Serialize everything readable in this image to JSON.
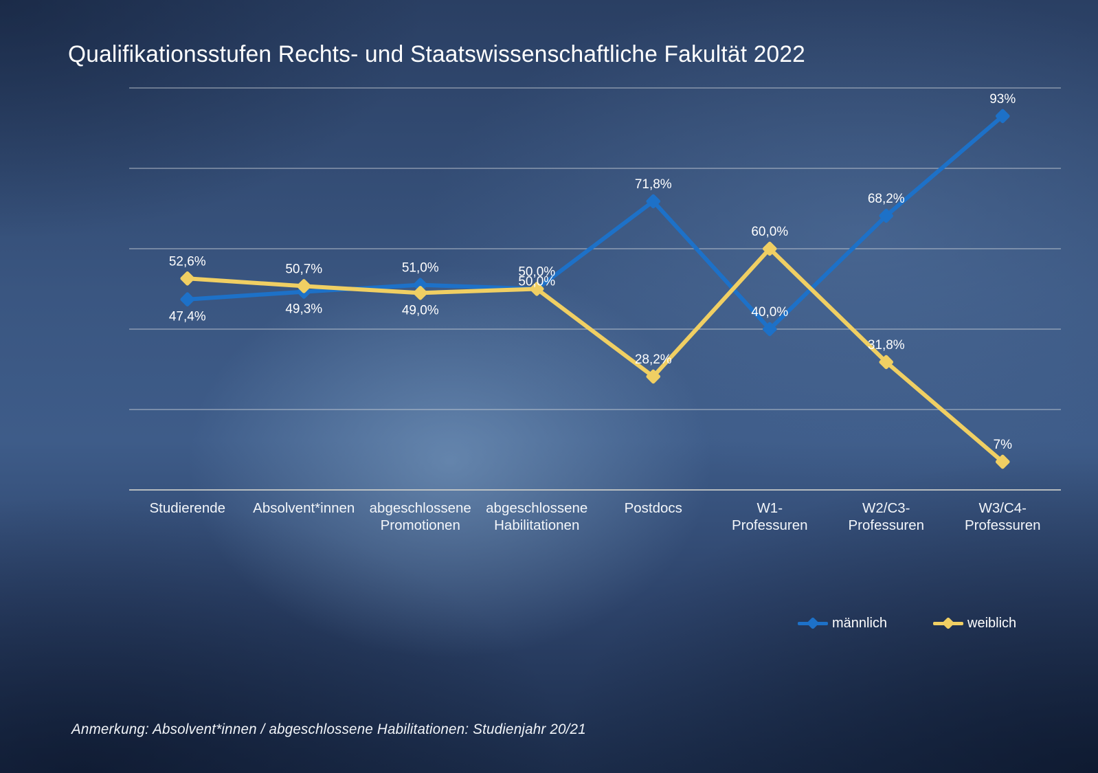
{
  "page": {
    "title": "Qualifikationsstufen Rechts- und Staatswissenschaftliche Fakultät 2022",
    "note": "Anmerkung: Absolvent*innen / abgeschlossene Habilitationen: Studienjahr 20/21"
  },
  "legend": {
    "items": [
      {
        "label": "männlich",
        "color": "#1d71c8"
      },
      {
        "label": "weiblich",
        "color": "#f0cf63"
      }
    ]
  },
  "colors": {
    "male_blue": "#1d71c8",
    "female_yellow": "#f0cf63",
    "gridline": "#d0d5da",
    "text": "#ffffff"
  },
  "chart_data": {
    "type": "line",
    "title": "Qualifikationsstufen Rechts- und Staatswissenschaftliche Fakultät 2022",
    "categories": [
      "Studierende",
      "Absolvent*innen",
      "abgeschlossene\nPromotionen",
      "abgeschlossene\nHabilitationen",
      "Postdocs",
      "W1-\nProfessuren",
      "W2/C3-\nProfessuren",
      "W3/C4-\nProfessuren"
    ],
    "series": [
      {
        "name": "männlich",
        "color": "#1d71c8",
        "values": [
          47.4,
          49.3,
          51.0,
          50.0,
          71.8,
          40.0,
          68.2,
          93
        ],
        "labels": [
          "47,4%",
          "49,3%",
          "51,0%",
          "50,0%",
          "71,8%",
          "40,0%",
          "68,2%",
          "93%"
        ],
        "label_positions": [
          "below",
          "below",
          "above",
          "above",
          "above",
          "above",
          "above",
          "above"
        ]
      },
      {
        "name": "weiblich",
        "color": "#f0cf63",
        "values": [
          52.6,
          50.7,
          49.0,
          50.0,
          28.2,
          60.0,
          31.8,
          7
        ],
        "labels": [
          "52,6%",
          "50,7%",
          "49,0%",
          "50,0%",
          "28,2%",
          "60,0%",
          "31,8%",
          "7%"
        ],
        "label_positions": [
          "above",
          "above",
          "below",
          "above-tight",
          "above",
          "above",
          "above",
          "above"
        ]
      }
    ],
    "xlabel": "",
    "ylabel": "",
    "ylim": [
      0,
      100
    ],
    "gridlines": [
      0,
      20,
      40,
      60,
      80,
      100
    ],
    "grid": true,
    "y_tick_labels_visible": false,
    "legend_position": "bottom-right",
    "marker": "diamond"
  }
}
